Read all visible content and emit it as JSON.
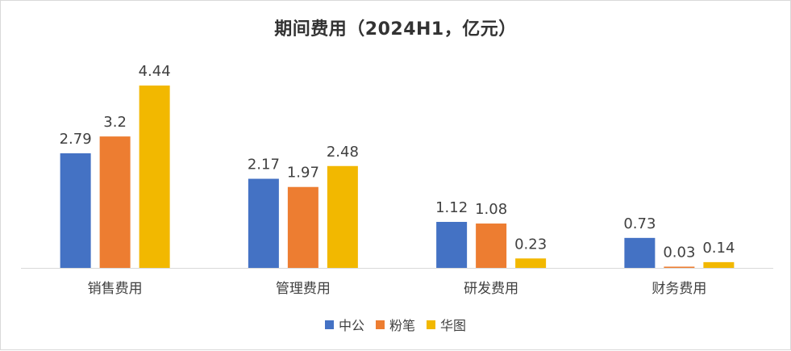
{
  "chart_data": {
    "type": "bar",
    "title": "期间费用（2024H1，亿元）",
    "categories": [
      "销售费用",
      "管理费用",
      "研发费用",
      "财务费用"
    ],
    "series": [
      {
        "name": "中公",
        "color": "#4472C4",
        "values": [
          2.79,
          2.17,
          1.12,
          0.73
        ],
        "labels": [
          "2.79",
          "2.17",
          "1.12",
          "0.73"
        ]
      },
      {
        "name": "粉笔",
        "color": "#ED7D31",
        "values": [
          3.2,
          1.97,
          1.08,
          0.03
        ],
        "labels": [
          "3.2",
          "1.97",
          "1.08",
          "0.03"
        ]
      },
      {
        "name": "华图",
        "color": "#F2B800",
        "values": [
          4.44,
          2.48,
          0.23,
          0.14
        ],
        "labels": [
          "4.44",
          "2.48",
          "0.23",
          "0.14"
        ]
      }
    ],
    "ylim": [
      0,
      4.44
    ],
    "grid": false,
    "legend": "bottom"
  }
}
